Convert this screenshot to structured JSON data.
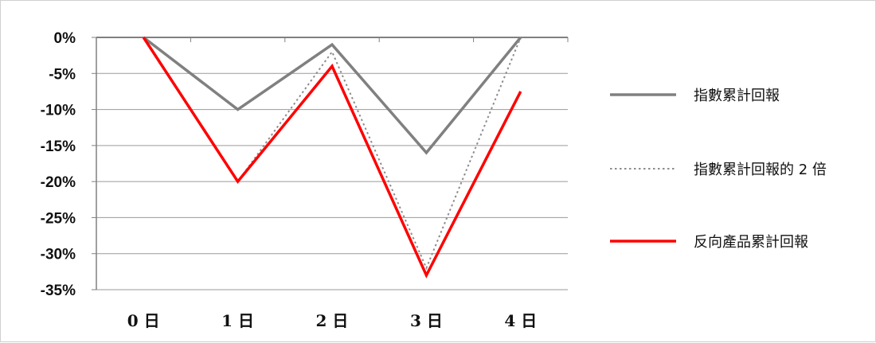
{
  "chart_data": {
    "type": "line",
    "categories": [
      "0 日",
      "1 日",
      "2 日",
      "3 日",
      "4 日"
    ],
    "y_ticks": [
      "0%",
      "-5%",
      "-10%",
      "-15%",
      "-20%",
      "-25%",
      "-30%",
      "-35%"
    ],
    "y_tick_values": [
      0,
      -5,
      -10,
      -15,
      -20,
      -25,
      -30,
      -35
    ],
    "ylim": [
      -35,
      0
    ],
    "grid": true,
    "legend_position": "right",
    "series": [
      {
        "name": "指數累計回報",
        "values": [
          0,
          -10,
          -1,
          -16,
          0
        ],
        "color": "#808080",
        "style": "solid",
        "legend_label": "指數累計回報"
      },
      {
        "name": "指數累計回報的 2 倍",
        "values": [
          0,
          -20,
          -2,
          -32,
          0
        ],
        "color": "#8c8c8c",
        "style": "dotted",
        "legend_label": "指數累計回報的 2 倍"
      },
      {
        "name": "反向產品累計回報",
        "values": [
          0,
          -20,
          -4,
          -33,
          -7.5
        ],
        "color": "#ff0000",
        "style": "solid",
        "legend_label": "反向產品累計回報"
      }
    ]
  }
}
